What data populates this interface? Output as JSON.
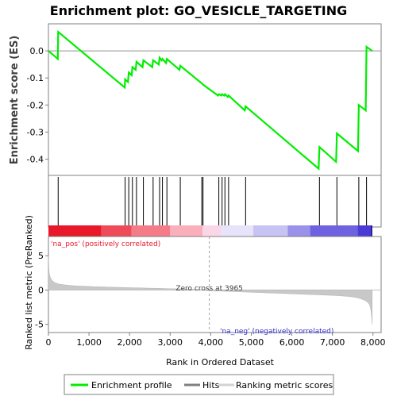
{
  "chart_data": {
    "type": "line",
    "title": "Enrichment plot: GO_VESICLE_TARGETING",
    "es_panel": {
      "ylabel": "Enrichment score (ES)",
      "ylim": [
        -0.46,
        0.1
      ],
      "yticks": [
        0.0,
        -0.1,
        -0.2,
        -0.3,
        -0.4
      ],
      "ytick_labels": [
        "0.0",
        "-0.1",
        "-0.2",
        "-0.3",
        "-0.4"
      ],
      "series": [
        {
          "name": "Enrichment profile",
          "color": "#00ee00",
          "x": [
            0,
            230,
            240,
            1880,
            1890,
            1960,
            1980,
            2050,
            2070,
            2150,
            2170,
            2320,
            2340,
            2560,
            2580,
            2720,
            2740,
            2790,
            2810,
            2900,
            2920,
            3230,
            3250,
            3780,
            3810,
            4180,
            4200,
            4260,
            4280,
            4330,
            4350,
            4420,
            4440,
            4840,
            4860,
            6660,
            6680,
            7090,
            7110,
            7630,
            7650,
            7820,
            7840,
            7980
          ],
          "y": [
            0.0,
            -0.03,
            0.07,
            -0.135,
            -0.105,
            -0.115,
            -0.08,
            -0.09,
            -0.06,
            -0.07,
            -0.04,
            -0.06,
            -0.035,
            -0.06,
            -0.035,
            -0.05,
            -0.025,
            -0.035,
            -0.03,
            -0.045,
            -0.03,
            -0.07,
            -0.055,
            -0.12,
            -0.125,
            -0.165,
            -0.16,
            -0.165,
            -0.16,
            -0.165,
            -0.16,
            -0.17,
            -0.165,
            -0.22,
            -0.205,
            -0.435,
            -0.355,
            -0.41,
            -0.305,
            -0.37,
            -0.2,
            -0.22,
            0.015,
            0.0
          ]
        }
      ]
    },
    "hits": {
      "name": "Hits",
      "x": [
        240,
        1890,
        1980,
        2070,
        2170,
        2340,
        2580,
        2740,
        2810,
        2920,
        3250,
        3780,
        3810,
        4200,
        4280,
        4350,
        4440,
        4860,
        6680,
        7110,
        7650,
        7840
      ]
    },
    "ranking_bar": {
      "colors": [
        "#e8182a",
        "#ef4a5a",
        "#f47c88",
        "#f9b0bb",
        "#fbd6e7",
        "#e6e3fa",
        "#c7c3f3",
        "#9a91ea",
        "#6f62e0",
        "#4a3bd6",
        "#1a0fb8"
      ],
      "stops": [
        0,
        1300,
        2050,
        3000,
        3800,
        4250,
        5050,
        5900,
        6450,
        7620,
        7950
      ]
    },
    "metric_panel": {
      "ylabel": "Ranked list metric (PreRanked)",
      "ylim": [
        -6.2,
        7.8
      ],
      "yticks": [
        5,
        0,
        -5
      ],
      "ytick_labels": [
        "5",
        "0",
        "-5"
      ],
      "pos_label": "'na_pos' (positively correlated)",
      "neg_label": "'na_neg' (negatively correlated)",
      "zero_cross_label": "Zero cross at 3965",
      "zero_cross": 3965
    },
    "xaxis": {
      "xlabel": "Rank in Ordered Dataset",
      "xlim": [
        0,
        8200
      ],
      "xticks": [
        0,
        1000,
        2000,
        3000,
        4000,
        5000,
        6000,
        7000,
        8000
      ],
      "xtick_labels": [
        "0",
        "1,000",
        "2,000",
        "3,000",
        "4,000",
        "5,000",
        "6,000",
        "7,000",
        "8,000"
      ],
      "n": 7980
    },
    "legend": {
      "placement": "bottom",
      "items": [
        {
          "label": "Enrichment profile",
          "color": "#00ee00"
        },
        {
          "label": "Hits",
          "color": "#808080"
        },
        {
          "label": "Ranking metric scores",
          "color": "#d3d3d3"
        }
      ]
    }
  }
}
